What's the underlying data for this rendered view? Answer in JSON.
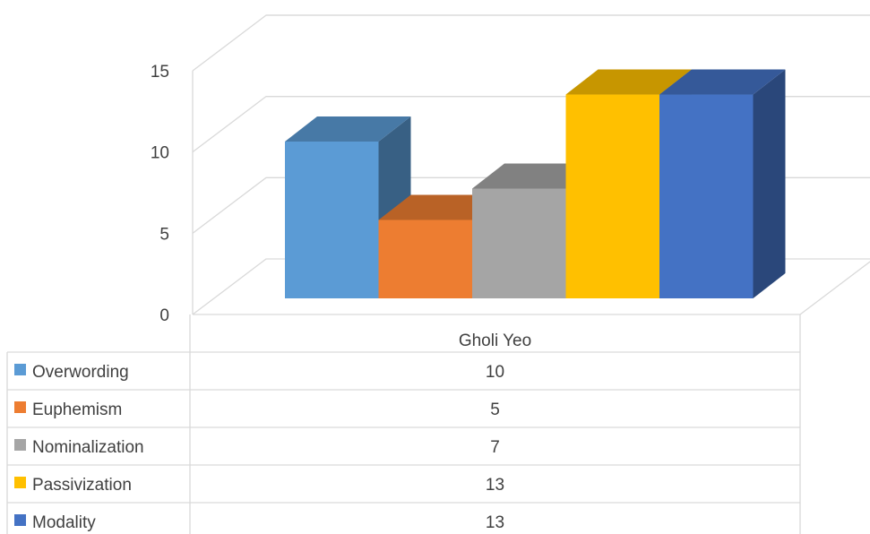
{
  "chart_data": {
    "type": "bar",
    "style": "3d-clustered-column-with-data-table",
    "categories": [
      "Gholi Yeo"
    ],
    "series": [
      {
        "name": "Overwording",
        "values": [
          10
        ],
        "color": "#5b9bd5"
      },
      {
        "name": "Euphemism",
        "values": [
          5
        ],
        "color": "#ed7d31"
      },
      {
        "name": "Nominalization",
        "values": [
          7
        ],
        "color": "#a5a5a5"
      },
      {
        "name": "Passivization",
        "values": [
          13
        ],
        "color": "#ffc000"
      },
      {
        "name": "Modality",
        "values": [
          13
        ],
        "color": "#4472c4"
      }
    ],
    "ylim": [
      0,
      15
    ],
    "yticks": [
      0,
      5,
      10,
      15
    ],
    "grid": true,
    "legend": "data-table-left"
  }
}
